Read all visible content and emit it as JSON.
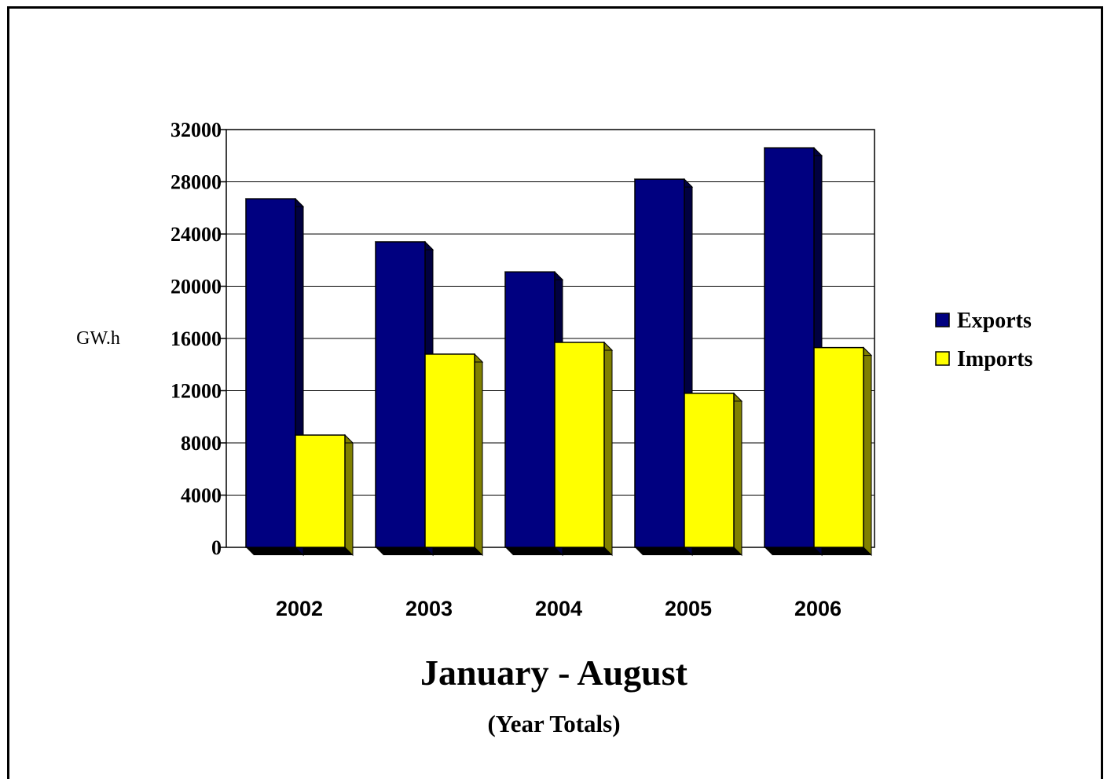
{
  "chart_data": {
    "type": "bar",
    "title": "January - August",
    "subtitle": "(Year Totals)",
    "xlabel": "",
    "ylabel": "GW.h",
    "categories": [
      "2002",
      "2003",
      "2004",
      "2005",
      "2006"
    ],
    "series": [
      {
        "name": "Exports",
        "color": "#000080",
        "side_color": "#000040",
        "values": [
          26700,
          23400,
          21100,
          28200,
          30600
        ]
      },
      {
        "name": "Imports",
        "color": "#ffff00",
        "side_color": "#808000",
        "values": [
          8600,
          14800,
          15700,
          11800,
          15300
        ]
      }
    ],
    "ylim": [
      0,
      32000
    ],
    "yticks": [
      "0",
      "4000",
      "8000",
      "12000",
      "16000",
      "20000",
      "24000",
      "28000",
      "32000"
    ],
    "grid": true,
    "legend_position": "right"
  }
}
